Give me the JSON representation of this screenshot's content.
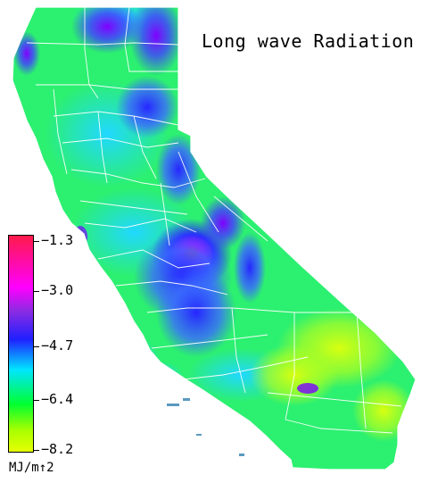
{
  "title": "Long wave Radiation",
  "legend": {
    "unit": "MJ/m↑2",
    "ticks": [
      "−1.3",
      "−3.0",
      "−4.7",
      "−6.4",
      "−8.2"
    ],
    "colors": {
      "top": "#ff1a4a",
      "magenta": "#ff00ff",
      "violet": "#8a2be2",
      "blue": "#2020ff",
      "cyan": "#00e5ff",
      "green": "#00ff30",
      "yellow": "#e6ff00"
    }
  },
  "map": {
    "region": "California",
    "boundary_color": "#ffffff"
  }
}
